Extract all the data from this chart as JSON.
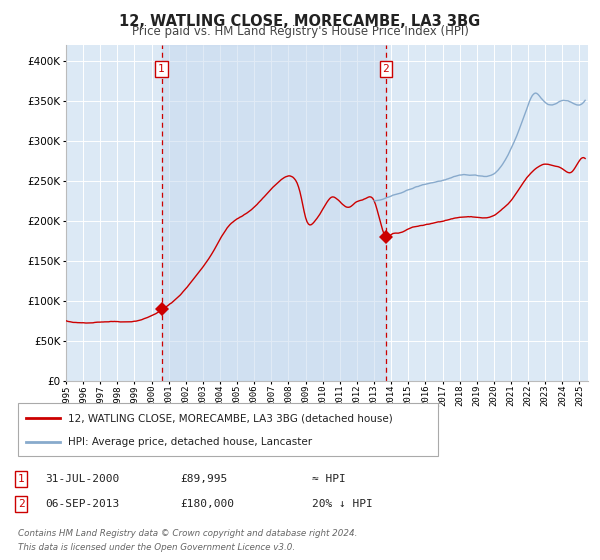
{
  "title": "12, WATLING CLOSE, MORECAMBE, LA3 3BG",
  "subtitle": "Price paid vs. HM Land Registry's House Price Index (HPI)",
  "legend_line1": "12, WATLING CLOSE, MORECAMBE, LA3 3BG (detached house)",
  "legend_line2": "HPI: Average price, detached house, Lancaster",
  "annotation1_label": "1",
  "annotation1_date": "31-JUL-2000",
  "annotation1_price": "£89,995",
  "annotation1_hpi": "≈ HPI",
  "annotation2_label": "2",
  "annotation2_date": "06-SEP-2013",
  "annotation2_price": "£180,000",
  "annotation2_hpi": "20% ↓ HPI",
  "footnote_line1": "Contains HM Land Registry data © Crown copyright and database right 2024.",
  "footnote_line2": "This data is licensed under the Open Government Licence v3.0.",
  "red_line_color": "#cc0000",
  "blue_line_color": "#88aacc",
  "background_color": "#ffffff",
  "plot_bg_color": "#dce9f5",
  "grid_color": "#ffffff",
  "dashed_line_color": "#cc0000",
  "marker_color": "#cc0000",
  "sale1_x": 2000.58,
  "sale1_y": 89995,
  "sale2_x": 2013.68,
  "sale2_y": 180000,
  "xmin": 1995.0,
  "xmax": 2025.5,
  "ymin": 0,
  "ymax": 420000,
  "yticks": [
    0,
    50000,
    100000,
    150000,
    200000,
    250000,
    300000,
    350000,
    400000
  ],
  "red_key_points": [
    [
      1995.0,
      75000
    ],
    [
      1996.0,
      72000
    ],
    [
      1997.0,
      74000
    ],
    [
      1998.0,
      75000
    ],
    [
      1999.0,
      76000
    ],
    [
      2000.58,
      89995
    ],
    [
      2001.5,
      105000
    ],
    [
      2002.5,
      130000
    ],
    [
      2003.5,
      160000
    ],
    [
      2004.5,
      195000
    ],
    [
      2005.5,
      210000
    ],
    [
      2006.5,
      230000
    ],
    [
      2007.5,
      252000
    ],
    [
      2008.2,
      257000
    ],
    [
      2008.7,
      235000
    ],
    [
      2009.0,
      205000
    ],
    [
      2009.5,
      200000
    ],
    [
      2010.0,
      215000
    ],
    [
      2010.5,
      230000
    ],
    [
      2011.0,
      225000
    ],
    [
      2011.5,
      218000
    ],
    [
      2012.0,
      225000
    ],
    [
      2012.5,
      228000
    ],
    [
      2013.0,
      225000
    ],
    [
      2013.68,
      180000
    ],
    [
      2014.0,
      183000
    ],
    [
      2014.5,
      185000
    ],
    [
      2015.0,
      190000
    ],
    [
      2016.0,
      195000
    ],
    [
      2017.0,
      200000
    ],
    [
      2018.0,
      205000
    ],
    [
      2019.0,
      205000
    ],
    [
      2020.0,
      207000
    ],
    [
      2020.5,
      215000
    ],
    [
      2021.0,
      225000
    ],
    [
      2021.5,
      240000
    ],
    [
      2022.0,
      255000
    ],
    [
      2022.5,
      265000
    ],
    [
      2023.0,
      270000
    ],
    [
      2023.5,
      268000
    ],
    [
      2024.0,
      265000
    ],
    [
      2024.5,
      260000
    ],
    [
      2025.0,
      275000
    ],
    [
      2025.3,
      278000
    ]
  ],
  "blue_key_points": [
    [
      2013.0,
      225000
    ],
    [
      2014.0,
      230000
    ],
    [
      2015.0,
      238000
    ],
    [
      2016.0,
      245000
    ],
    [
      2017.0,
      250000
    ],
    [
      2018.0,
      255000
    ],
    [
      2019.0,
      255000
    ],
    [
      2020.0,
      258000
    ],
    [
      2020.5,
      270000
    ],
    [
      2021.0,
      290000
    ],
    [
      2021.5,
      315000
    ],
    [
      2022.0,
      345000
    ],
    [
      2022.3,
      358000
    ],
    [
      2022.8,
      352000
    ],
    [
      2023.0,
      348000
    ],
    [
      2023.5,
      345000
    ],
    [
      2024.0,
      350000
    ],
    [
      2024.5,
      348000
    ],
    [
      2025.0,
      345000
    ],
    [
      2025.3,
      350000
    ]
  ]
}
